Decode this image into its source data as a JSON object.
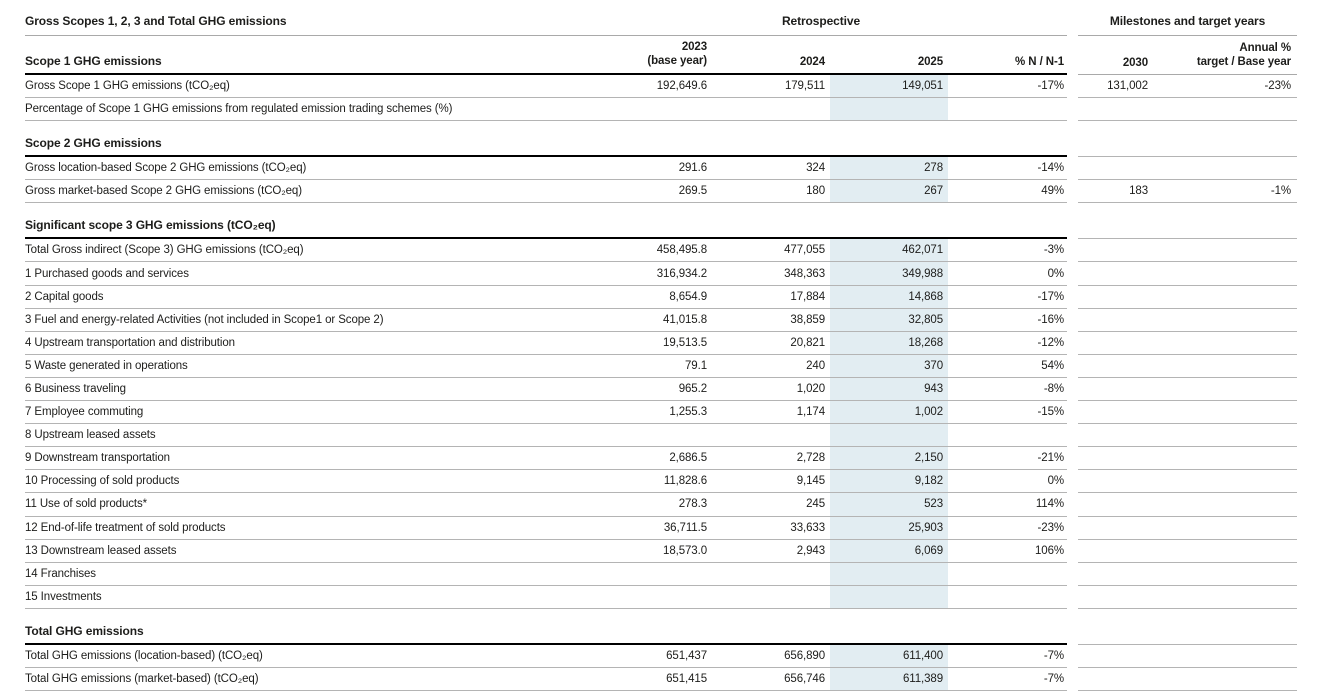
{
  "table": {
    "title": "Gross Scopes 1, 2, 3 and Total GHG emissions",
    "group_headers": {
      "retrospective": "Retrospective",
      "milestones": "Milestones and target years"
    },
    "columns": {
      "first_section_label": "Scope 1 GHG emissions",
      "y2023_line1": "2023",
      "y2023_line2": "(base year)",
      "y2024": "2024",
      "y2025": "2025",
      "pct": "% N / N-1",
      "y2030": "2030",
      "annual_line1": "Annual %",
      "annual_line2": "target / Base year"
    },
    "highlight_color": "#e2edf2",
    "rows": [
      {
        "type": "data",
        "label": "Gross Scope 1 GHG emissions (tCO₂eq)",
        "values": [
          "192,649.6",
          "179,511",
          "149,051",
          "-17%",
          "131,002",
          "-23%"
        ]
      },
      {
        "type": "data",
        "label": "Percentage of Scope 1 GHG emissions from regulated emission trading schemes (%)",
        "values": [
          "",
          "",
          "",
          "",
          "",
          ""
        ]
      },
      {
        "type": "section",
        "label": "Scope 2 GHG emissions"
      },
      {
        "type": "data",
        "label": "Gross location-based Scope 2 GHG emissions (tCO₂eq)",
        "values": [
          "291.6",
          "324",
          "278",
          "-14%",
          "",
          ""
        ]
      },
      {
        "type": "data",
        "label": "Gross market-based Scope 2 GHG emissions (tCO₂eq)",
        "values": [
          "269.5",
          "180",
          "267",
          "49%",
          "183",
          "-1%"
        ]
      },
      {
        "type": "section",
        "label": "Significant scope 3 GHG emissions (tCO₂eq)"
      },
      {
        "type": "data",
        "label": "Total Gross indirect (Scope 3) GHG emissions (tCO₂eq)",
        "values": [
          "458,495.8",
          "477,055",
          "462,071",
          "-3%",
          "",
          ""
        ]
      },
      {
        "type": "data",
        "label": "1 Purchased goods and services",
        "values": [
          "316,934.2",
          "348,363",
          "349,988",
          "0%",
          "",
          ""
        ]
      },
      {
        "type": "data",
        "label": "2 Capital goods",
        "values": [
          "8,654.9",
          "17,884",
          "14,868",
          "-17%",
          "",
          ""
        ]
      },
      {
        "type": "data",
        "label": "3 Fuel and energy-related Activities (not included in Scope1 or Scope 2)",
        "values": [
          "41,015.8",
          "38,859",
          "32,805",
          "-16%",
          "",
          ""
        ]
      },
      {
        "type": "data",
        "label": "4 Upstream transportation and distribution",
        "values": [
          "19,513.5",
          "20,821",
          "18,268",
          "-12%",
          "",
          ""
        ]
      },
      {
        "type": "data",
        "label": "5 Waste generated in operations",
        "values": [
          "79.1",
          "240",
          "370",
          "54%",
          "",
          ""
        ]
      },
      {
        "type": "data",
        "label": "6 Business traveling",
        "values": [
          "965.2",
          "1,020",
          "943",
          "-8%",
          "",
          ""
        ]
      },
      {
        "type": "data",
        "label": "7 Employee commuting",
        "values": [
          "1,255.3",
          "1,174",
          "1,002",
          "-15%",
          "",
          ""
        ]
      },
      {
        "type": "data",
        "label": "8 Upstream leased assets",
        "values": [
          "",
          "",
          "",
          "",
          "",
          ""
        ]
      },
      {
        "type": "data",
        "label": "9 Downstream transportation",
        "values": [
          "2,686.5",
          "2,728",
          "2,150",
          "-21%",
          "",
          ""
        ]
      },
      {
        "type": "data",
        "label": "10 Processing of sold products",
        "values": [
          "11,828.6",
          "9,145",
          "9,182",
          "0%",
          "",
          ""
        ]
      },
      {
        "type": "data",
        "label": "11 Use of sold products*",
        "values": [
          "278.3",
          "245",
          "523",
          "114%",
          "",
          ""
        ]
      },
      {
        "type": "data",
        "label": "12 End-of-life treatment of sold products",
        "values": [
          "36,711.5",
          "33,633",
          "25,903",
          "-23%",
          "",
          ""
        ]
      },
      {
        "type": "data",
        "label": "13 Downstream leased assets",
        "values": [
          "18,573.0",
          "2,943",
          "6,069",
          "106%",
          "",
          ""
        ]
      },
      {
        "type": "data",
        "label": "14 Franchises",
        "values": [
          "",
          "",
          "",
          "",
          "",
          ""
        ]
      },
      {
        "type": "data",
        "label": "15 Investments",
        "values": [
          "",
          "",
          "",
          "",
          "",
          ""
        ]
      },
      {
        "type": "section",
        "label": "Total GHG emissions"
      },
      {
        "type": "data",
        "label": "Total GHG emissions (location-based) (tCO₂eq)",
        "values": [
          "651,437",
          "656,890",
          "611,400",
          "-7%",
          "",
          ""
        ]
      },
      {
        "type": "data",
        "label": "Total GHG emissions (market-based) (tCO₂eq)",
        "values": [
          "651,415",
          "656,746",
          "611,389",
          "-7%",
          "",
          ""
        ]
      }
    ]
  }
}
